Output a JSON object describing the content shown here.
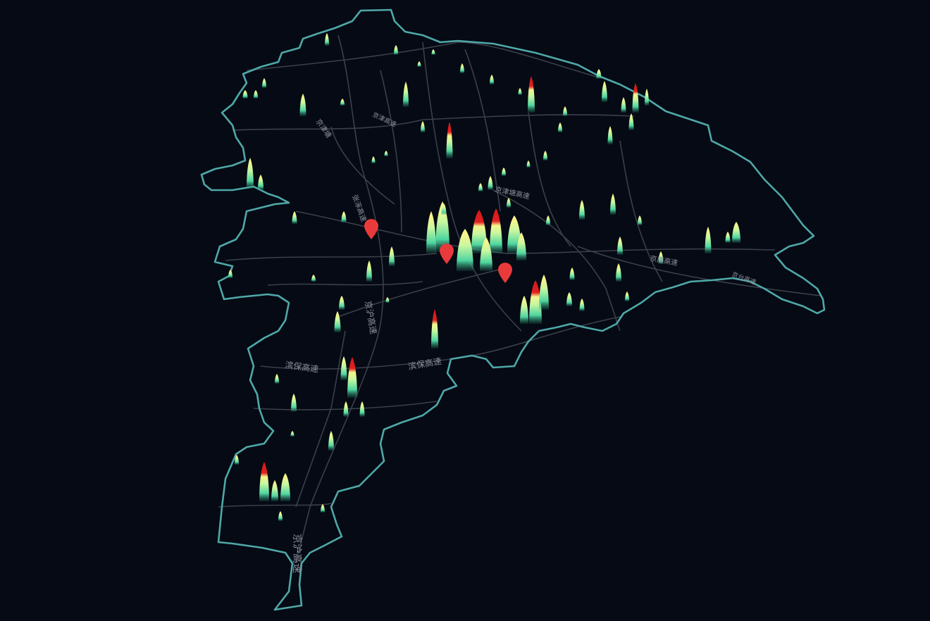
{
  "map": {
    "background": "#050a14",
    "boundary_color": "#4fa8a8",
    "road_color": "#3a3f4a",
    "heat_colors": [
      "#4fd6a0",
      "#c8f7a0",
      "#f5f58c",
      "#e02020"
    ],
    "marker_color": "#e83a3a"
  },
  "road_labels": {
    "jingji_top": "京津塘",
    "zhangji": "张涿高速",
    "jinghu_mid": "京沪高速",
    "jingtang": "京唐高速",
    "binbao_left": "滨保高速",
    "binbao_right": "滨保高速",
    "jinghu_bottom": "京沪高速",
    "jingzhu": "京津高速",
    "jingjin": "京津塘高速",
    "jingyi": "京台高速"
  }
}
